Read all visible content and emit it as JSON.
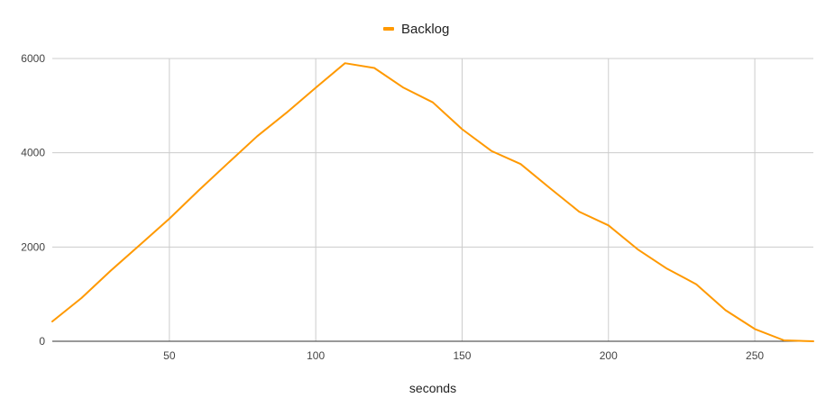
{
  "chart_data": {
    "type": "line",
    "xlabel": "seconds",
    "ylabel": "",
    "xlim": [
      10,
      270
    ],
    "ylim": [
      0,
      6000
    ],
    "x_ticks": [
      50,
      100,
      150,
      200,
      250
    ],
    "y_ticks": [
      0,
      2000,
      4000,
      6000
    ],
    "grid": true,
    "legend_position": "top",
    "series": [
      {
        "name": "Backlog",
        "color": "#ff9900",
        "x": [
          10,
          20,
          30,
          40,
          50,
          60,
          70,
          80,
          90,
          100,
          110,
          120,
          130,
          140,
          150,
          160,
          170,
          180,
          190,
          200,
          210,
          220,
          230,
          240,
          250,
          260,
          270
        ],
        "y": [
          420,
          920,
          1500,
          2050,
          2600,
          3200,
          3780,
          4350,
          4850,
          5380,
          5900,
          5800,
          5380,
          5070,
          4500,
          4040,
          3760,
          3250,
          2750,
          2460,
          1950,
          1540,
          1210,
          660,
          260,
          20,
          0
        ]
      }
    ]
  }
}
